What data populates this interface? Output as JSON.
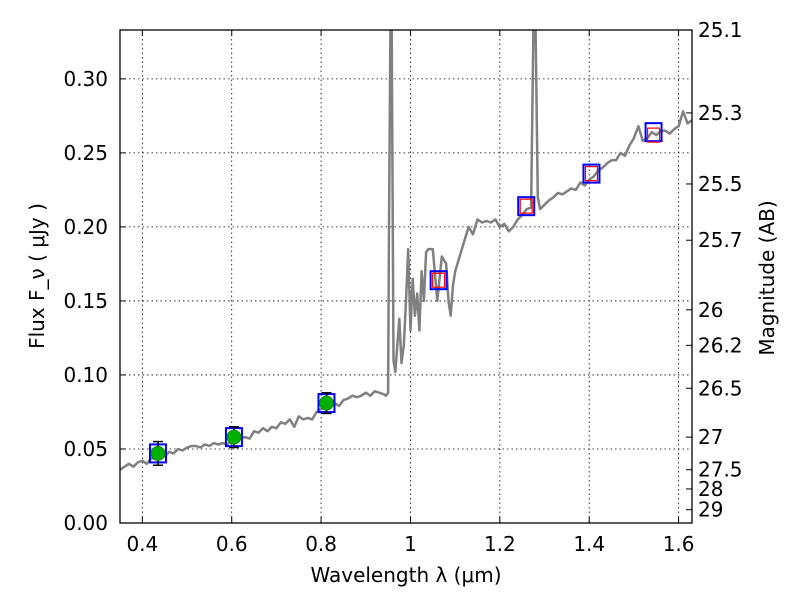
{
  "chart_data": {
    "type": "line",
    "xlabel": "Wavelength λ (μm)",
    "ylabel": "Flux F_ν ( μJy )",
    "ylabel_right": "Magnitude (AB)",
    "xlim": [
      0.35,
      1.63
    ],
    "ylim": [
      0.0,
      0.333
    ],
    "grid": true,
    "x_ticks": [
      0.4,
      0.6,
      0.8,
      1.0,
      1.2,
      1.4,
      1.6
    ],
    "x_tick_labels": [
      "0.4",
      "0.6",
      "0.8",
      "1",
      "1.2",
      "1.4",
      "1.6"
    ],
    "y_ticks": [
      0.0,
      0.05,
      0.1,
      0.15,
      0.2,
      0.25,
      0.3
    ],
    "y_tick_labels": [
      "0.00",
      "0.05",
      "0.10",
      "0.15",
      "0.20",
      "0.25",
      "0.30"
    ],
    "right_ticks": [
      {
        "label": "25.1",
        "flux": 0.333
      },
      {
        "label": "25.3",
        "flux": 0.277
      },
      {
        "label": "25.5",
        "flux": 0.229
      },
      {
        "label": "25.7",
        "flux": 0.191
      },
      {
        "label": "26",
        "flux": 0.144
      },
      {
        "label": "26.2",
        "flux": 0.12
      },
      {
        "label": "26.5",
        "flux": 0.091
      },
      {
        "label": "27",
        "flux": 0.058
      },
      {
        "label": "27.5",
        "flux": 0.036
      },
      {
        "label": "28",
        "flux": 0.023
      },
      {
        "label": "29",
        "flux": 0.009
      }
    ],
    "series": [
      {
        "kind": "sed_model",
        "color": "#808080",
        "x": [
          0.35,
          0.36,
          0.37,
          0.38,
          0.39,
          0.4,
          0.41,
          0.42,
          0.43,
          0.44,
          0.45,
          0.46,
          0.47,
          0.48,
          0.49,
          0.5,
          0.51,
          0.52,
          0.53,
          0.54,
          0.55,
          0.56,
          0.57,
          0.58,
          0.59,
          0.6,
          0.61,
          0.62,
          0.63,
          0.64,
          0.65,
          0.66,
          0.67,
          0.68,
          0.69,
          0.7,
          0.71,
          0.72,
          0.73,
          0.74,
          0.75,
          0.76,
          0.77,
          0.78,
          0.79,
          0.8,
          0.81,
          0.82,
          0.83,
          0.84,
          0.85,
          0.86,
          0.87,
          0.88,
          0.89,
          0.9,
          0.91,
          0.92,
          0.93,
          0.94,
          0.945,
          0.95,
          0.952,
          0.955,
          0.958,
          0.962,
          0.966,
          0.97,
          0.975,
          0.98,
          0.985,
          0.99,
          0.995,
          1.0,
          1.005,
          1.01,
          1.015,
          1.02,
          1.025,
          1.03,
          1.035,
          1.04,
          1.05,
          1.06,
          1.07,
          1.08,
          1.085,
          1.09,
          1.095,
          1.1,
          1.11,
          1.12,
          1.13,
          1.14,
          1.15,
          1.16,
          1.17,
          1.18,
          1.19,
          1.2,
          1.21,
          1.22,
          1.23,
          1.24,
          1.25,
          1.26,
          1.27,
          1.275,
          1.28,
          1.285,
          1.29,
          1.3,
          1.31,
          1.32,
          1.33,
          1.34,
          1.35,
          1.36,
          1.37,
          1.38,
          1.39,
          1.4,
          1.41,
          1.42,
          1.43,
          1.44,
          1.45,
          1.46,
          1.47,
          1.48,
          1.49,
          1.5,
          1.51,
          1.52,
          1.53,
          1.54,
          1.55,
          1.56,
          1.57,
          1.58,
          1.59,
          1.6,
          1.61,
          1.62,
          1.63
        ],
        "y": [
          0.036,
          0.038,
          0.04,
          0.038,
          0.041,
          0.042,
          0.04,
          0.044,
          0.043,
          0.046,
          0.045,
          0.048,
          0.047,
          0.05,
          0.049,
          0.051,
          0.052,
          0.052,
          0.051,
          0.053,
          0.052,
          0.054,
          0.053,
          0.054,
          0.053,
          0.056,
          0.055,
          0.057,
          0.058,
          0.057,
          0.062,
          0.061,
          0.064,
          0.062,
          0.065,
          0.064,
          0.068,
          0.067,
          0.07,
          0.065,
          0.072,
          0.07,
          0.071,
          0.07,
          0.075,
          0.077,
          0.078,
          0.08,
          0.081,
          0.079,
          0.083,
          0.084,
          0.086,
          0.085,
          0.086,
          0.088,
          0.086,
          0.089,
          0.088,
          0.087,
          0.086,
          0.088,
          0.2,
          0.333,
          0.333,
          0.11,
          0.102,
          0.118,
          0.138,
          0.108,
          0.12,
          0.15,
          0.185,
          0.13,
          0.165,
          0.14,
          0.155,
          0.13,
          0.17,
          0.15,
          0.183,
          0.185,
          0.185,
          0.15,
          0.18,
          0.175,
          0.15,
          0.14,
          0.16,
          0.17,
          0.18,
          0.19,
          0.2,
          0.195,
          0.205,
          0.203,
          0.204,
          0.203,
          0.205,
          0.2,
          0.202,
          0.197,
          0.2,
          0.205,
          0.208,
          0.212,
          0.213,
          0.333,
          0.333,
          0.22,
          0.212,
          0.215,
          0.218,
          0.22,
          0.223,
          0.222,
          0.224,
          0.226,
          0.225,
          0.23,
          0.228,
          0.232,
          0.234,
          0.238,
          0.24,
          0.243,
          0.245,
          0.245,
          0.25,
          0.248,
          0.255,
          0.26,
          0.268,
          0.258,
          0.26,
          0.264,
          0.262,
          0.265,
          0.265,
          0.263,
          0.266,
          0.268,
          0.278,
          0.27,
          0.272
        ]
      },
      {
        "kind": "model_photometry",
        "marker": "square",
        "color": "#0000ff",
        "x": [
          0.435,
          0.605,
          0.812,
          1.063,
          1.259,
          1.405,
          1.544
        ],
        "y": [
          0.047,
          0.058,
          0.081,
          0.164,
          0.214,
          0.236,
          0.264
        ]
      },
      {
        "kind": "observed_upper_limits",
        "marker": "square",
        "color": "#ff0000",
        "x": [
          1.063,
          1.259,
          1.405,
          1.544
        ],
        "y": [
          0.164,
          0.214,
          0.236,
          0.262
        ]
      },
      {
        "kind": "observed_photometry",
        "marker": "circle",
        "color": "#00b000",
        "x": [
          0.435,
          0.605,
          0.812
        ],
        "y": [
          0.047,
          0.058,
          0.081
        ],
        "yerr": [
          0.008,
          0.007,
          0.007
        ]
      }
    ]
  }
}
